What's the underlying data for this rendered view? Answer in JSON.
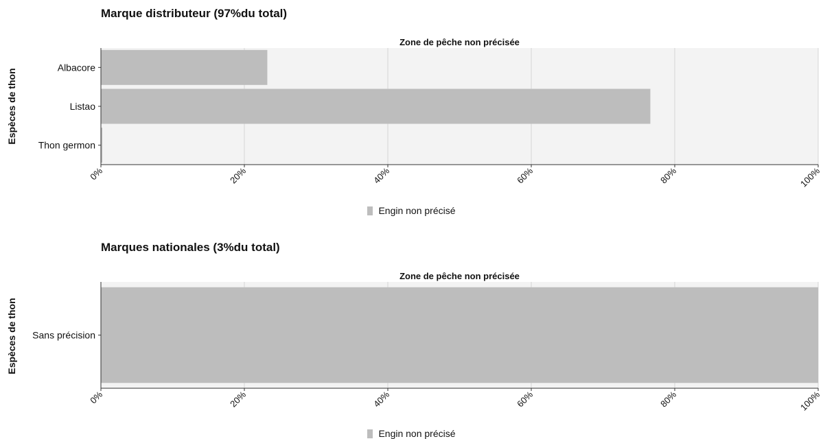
{
  "chart_data": [
    {
      "type": "bar",
      "orientation": "horizontal",
      "title": "Marque distributeur (97%du total)",
      "panel_title": "Zone de pêche non précisée",
      "ylabel": "Espèces de thon",
      "categories": [
        "Albacore",
        "Listao",
        "Thon germon"
      ],
      "series": [
        {
          "name": "Engin non précisé",
          "color": "#bdbdbd",
          "values": [
            0.232,
            0.766,
            0.002
          ]
        }
      ],
      "xlim": [
        0,
        1
      ],
      "xticks": [
        "0%",
        "20%",
        "40%",
        "60%",
        "80%",
        "100%"
      ],
      "grid": true,
      "legend": "bottom"
    },
    {
      "type": "bar",
      "orientation": "horizontal",
      "title": "Marques nationales (3%du total)",
      "panel_title": "Zone de pêche non précisée",
      "ylabel": "Espèces de thon",
      "categories": [
        "Sans précision"
      ],
      "series": [
        {
          "name": "Engin non précisé",
          "color": "#bdbdbd",
          "values": [
            1.0
          ]
        }
      ],
      "xlim": [
        0,
        1
      ],
      "xticks": [
        "0%",
        "20%",
        "40%",
        "60%",
        "80%",
        "100%"
      ],
      "grid": true,
      "legend": "bottom"
    }
  ]
}
